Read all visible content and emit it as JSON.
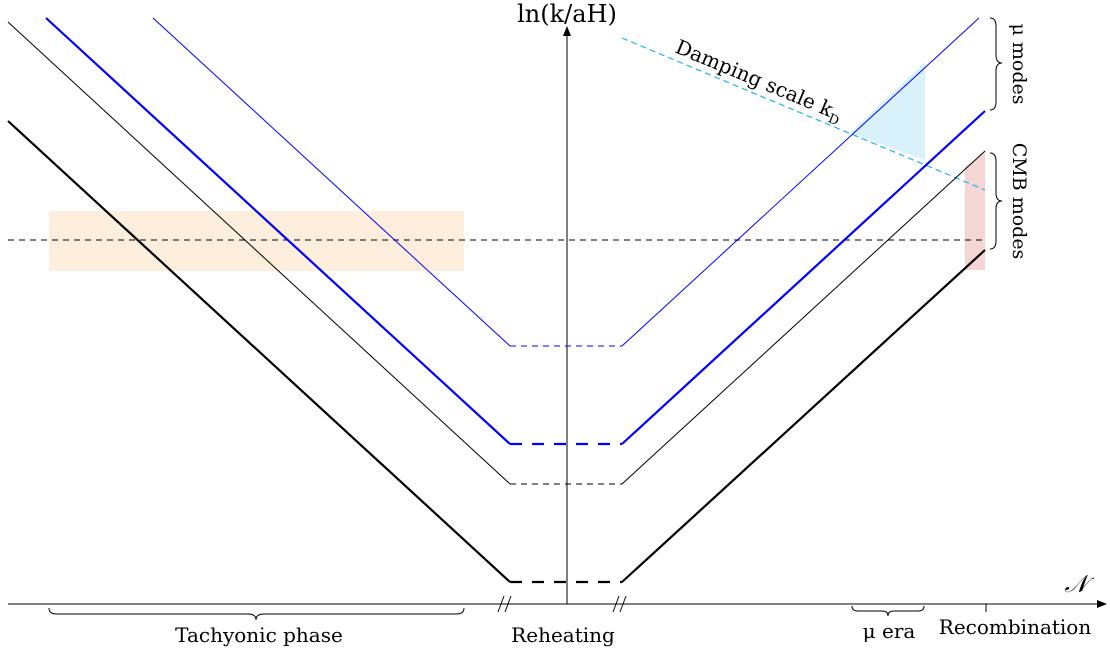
{
  "axes": {
    "y_label": "ln(k/aH)",
    "x_label": "𝒩"
  },
  "labels": {
    "damping_scale": "Damping scale k",
    "damping_subscript": "D",
    "mu_modes": "μ modes",
    "cmb_modes": "CMB modes",
    "tachyonic_phase": "Tachyonic phase",
    "reheating": "Reheating",
    "mu_era": "μ era",
    "recombination": "Recombination"
  },
  "colors": {
    "blue": "#0000ff",
    "black": "#000000",
    "damping": "#1eb4e6",
    "mu_fill": "#d9f1fa",
    "cmb_fill": "#f6d5d5",
    "horizon_band": "#fdeedd"
  },
  "modes": [
    {
      "name": "thin-blue",
      "color": "blue",
      "weight": "thin"
    },
    {
      "name": "thick-blue",
      "color": "blue",
      "weight": "thick"
    },
    {
      "name": "thin-black",
      "color": "black",
      "weight": "thin"
    },
    {
      "name": "thick-black",
      "color": "black",
      "weight": "thick"
    }
  ]
}
